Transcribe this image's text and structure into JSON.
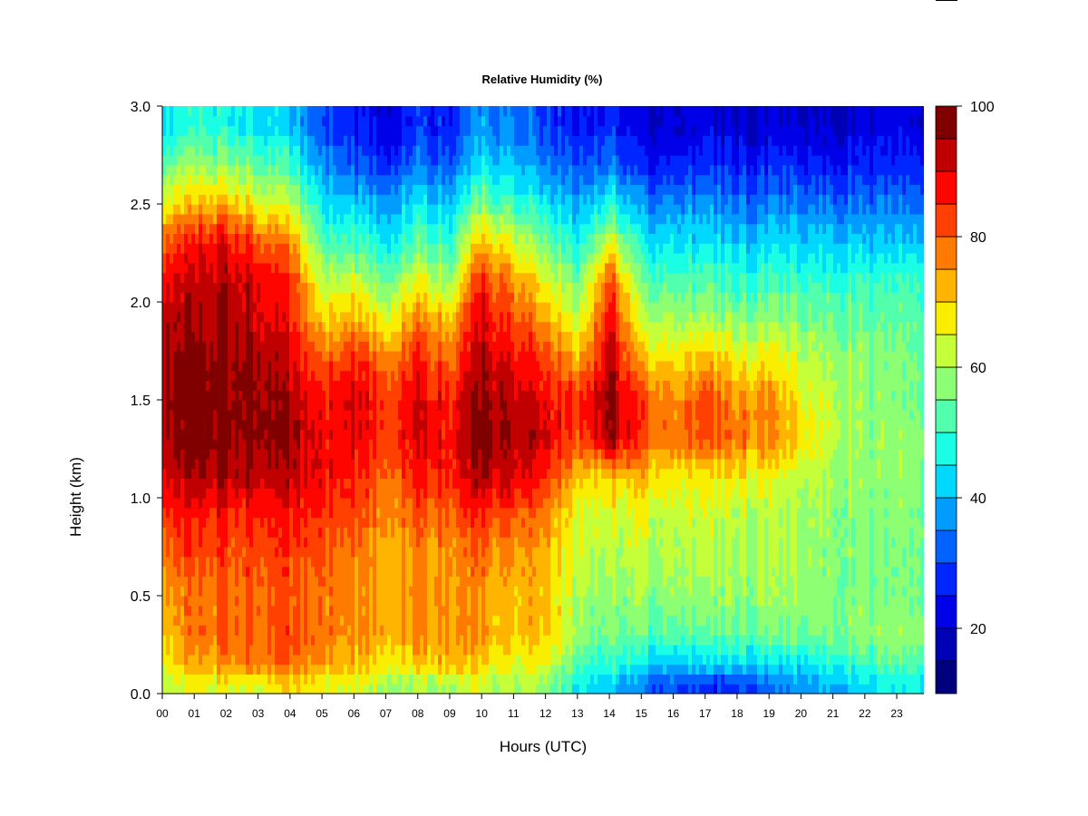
{
  "chart_data": {
    "type": "heatmap",
    "title": "Relative Humidity (%)",
    "xlabel": "Hours (UTC)",
    "ylabel": "Height (km)",
    "xlim": [
      0,
      23.85
    ],
    "ylim": [
      0,
      3
    ],
    "x_ticks": [
      "00",
      "01",
      "02",
      "03",
      "04",
      "05",
      "06",
      "07",
      "08",
      "09",
      "10",
      "11",
      "12",
      "13",
      "14",
      "15",
      "16",
      "17",
      "18",
      "19",
      "20",
      "21",
      "22",
      "23"
    ],
    "y_ticks": [
      "0.0",
      "0.5",
      "1.0",
      "1.5",
      "2.0",
      "2.5",
      "3.0"
    ],
    "colorbar": {
      "range": [
        10,
        100
      ],
      "ticks": [
        "20",
        "40",
        "60",
        "80",
        "100"
      ],
      "levels": [
        {
          "from": 10,
          "to": 15,
          "color": "#00007f"
        },
        {
          "from": 15,
          "to": 20,
          "color": "#0000b5"
        },
        {
          "from": 20,
          "to": 25,
          "color": "#0000e8"
        },
        {
          "from": 25,
          "to": 30,
          "color": "#0026ff"
        },
        {
          "from": 30,
          "to": 35,
          "color": "#0062ff"
        },
        {
          "from": 35,
          "to": 40,
          "color": "#009cff"
        },
        {
          "from": 40,
          "to": 45,
          "color": "#00d8ff"
        },
        {
          "from": 45,
          "to": 50,
          "color": "#1affe4"
        },
        {
          "from": 50,
          "to": 55,
          "color": "#52ffac"
        },
        {
          "from": 55,
          "to": 60,
          "color": "#8cff73"
        },
        {
          "from": 60,
          "to": 65,
          "color": "#c4ff3a"
        },
        {
          "from": 65,
          "to": 70,
          "color": "#faee00"
        },
        {
          "from": 70,
          "to": 75,
          "color": "#ffb400"
        },
        {
          "from": 75,
          "to": 80,
          "color": "#ff7a00"
        },
        {
          "from": 80,
          "to": 85,
          "color": "#ff4000"
        },
        {
          "from": 85,
          "to": 90,
          "color": "#fe0500"
        },
        {
          "from": 90,
          "to": 95,
          "color": "#c00000"
        },
        {
          "from": 95,
          "to": 100,
          "color": "#800000"
        }
      ]
    },
    "heights_km": [
      0.05,
      0.15,
      0.3,
      0.5,
      0.7,
      0.9,
      1.1,
      1.3,
      1.5,
      1.7,
      1.9,
      2.1,
      2.3,
      2.5,
      2.7,
      2.9
    ],
    "time_hours": [
      0,
      1,
      2,
      3,
      4,
      5,
      6,
      7,
      8,
      9,
      10,
      11,
      12,
      13,
      14,
      15,
      16,
      17,
      18,
      19,
      20,
      21,
      22,
      23
    ],
    "rh_percent": [
      [
        63,
        66,
        64,
        66,
        68,
        66,
        64,
        60,
        60,
        62,
        62,
        60,
        60,
        45,
        42,
        34,
        30,
        27,
        30,
        32,
        36,
        40,
        44,
        46
      ],
      [
        68,
        73,
        76,
        78,
        78,
        74,
        72,
        68,
        70,
        72,
        70,
        66,
        66,
        52,
        50,
        44,
        40,
        42,
        42,
        42,
        44,
        48,
        50,
        52
      ],
      [
        72,
        78,
        80,
        80,
        82,
        78,
        76,
        74,
        76,
        76,
        74,
        70,
        72,
        58,
        56,
        54,
        52,
        52,
        54,
        54,
        54,
        56,
        58,
        58
      ],
      [
        75,
        78,
        80,
        80,
        80,
        78,
        76,
        74,
        76,
        76,
        74,
        72,
        72,
        60,
        58,
        58,
        58,
        58,
        58,
        58,
        58,
        58,
        56,
        56
      ],
      [
        80,
        82,
        82,
        82,
        82,
        80,
        78,
        74,
        76,
        76,
        78,
        74,
        74,
        62,
        62,
        62,
        60,
        60,
        60,
        60,
        58,
        58,
        56,
        56
      ],
      [
        85,
        86,
        86,
        86,
        86,
        84,
        82,
        76,
        80,
        80,
        84,
        80,
        78,
        64,
        64,
        64,
        62,
        62,
        62,
        60,
        60,
        58,
        56,
        56
      ],
      [
        92,
        94,
        94,
        92,
        92,
        88,
        86,
        80,
        86,
        86,
        94,
        90,
        86,
        70,
        70,
        72,
        66,
        66,
        68,
        64,
        62,
        60,
        58,
        58
      ],
      [
        96,
        98,
        98,
        97,
        95,
        88,
        90,
        84,
        90,
        88,
        98,
        94,
        92,
        80,
        96,
        82,
        78,
        80,
        78,
        76,
        68,
        62,
        58,
        58
      ],
      [
        97,
        98,
        98,
        97,
        94,
        86,
        92,
        84,
        90,
        86,
        97,
        92,
        90,
        84,
        97,
        82,
        76,
        82,
        76,
        76,
        66,
        62,
        58,
        56
      ],
      [
        96,
        97,
        97,
        96,
        90,
        80,
        86,
        78,
        86,
        80,
        94,
        88,
        84,
        72,
        94,
        72,
        68,
        72,
        68,
        66,
        62,
        60,
        58,
        56
      ],
      [
        94,
        95,
        95,
        92,
        86,
        70,
        74,
        66,
        78,
        72,
        90,
        82,
        76,
        62,
        90,
        62,
        60,
        60,
        58,
        58,
        56,
        56,
        54,
        54
      ],
      [
        90,
        92,
        94,
        90,
        84,
        62,
        64,
        56,
        66,
        60,
        86,
        76,
        66,
        54,
        84,
        54,
        52,
        52,
        50,
        50,
        50,
        50,
        50,
        50
      ],
      [
        82,
        86,
        90,
        82,
        76,
        52,
        52,
        46,
        54,
        50,
        72,
        64,
        56,
        46,
        66,
        46,
        44,
        44,
        42,
        42,
        42,
        42,
        42,
        42
      ],
      [
        68,
        72,
        74,
        66,
        62,
        44,
        42,
        38,
        44,
        42,
        56,
        50,
        46,
        38,
        48,
        36,
        36,
        36,
        34,
        34,
        34,
        34,
        34,
        34
      ],
      [
        56,
        58,
        58,
        54,
        50,
        36,
        32,
        28,
        34,
        32,
        44,
        40,
        36,
        30,
        36,
        26,
        26,
        27,
        26,
        26,
        26,
        26,
        26,
        27
      ],
      [
        46,
        48,
        48,
        44,
        40,
        30,
        26,
        22,
        28,
        26,
        36,
        34,
        30,
        24,
        28,
        20,
        20,
        21,
        20,
        20,
        20,
        20,
        21,
        22
      ]
    ]
  }
}
